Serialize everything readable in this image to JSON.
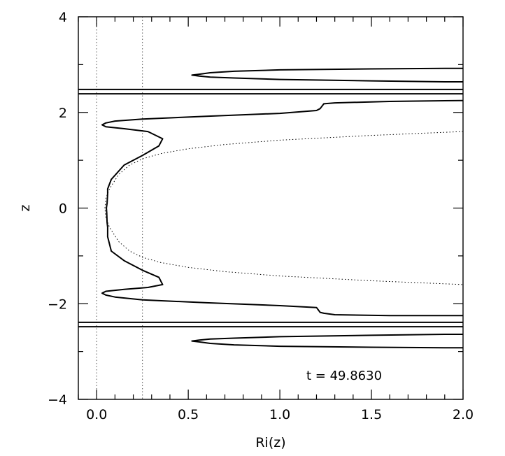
{
  "chart_data": {
    "type": "line",
    "xlabel": "Ri(z)",
    "ylabel": "z",
    "xlim": [
      -0.1,
      2.0
    ],
    "ylim": [
      -4,
      4
    ],
    "xticks": [
      0.0,
      0.5,
      1.0,
      1.5,
      2.0
    ],
    "xtick_labels": [
      "0.0",
      "0.5",
      "1.0",
      "1.5",
      "2.0"
    ],
    "yticks": [
      -4,
      -2,
      0,
      2,
      4
    ],
    "ytick_labels": [
      "−4",
      "−2",
      "0",
      "2",
      "4"
    ],
    "annotation": "t  =  49.8630",
    "reference_vlines": [
      0.0,
      0.25
    ],
    "horizontal_lines": [
      2.48,
      2.39,
      -2.39,
      -2.48
    ],
    "series": [
      {
        "style": "solid",
        "segments": [
          {
            "x": [
              2.0,
              1.9,
              1.5,
              1.0,
              0.75,
              0.62,
              0.56,
              0.52,
              0.56,
              0.62,
              0.75,
              1.0,
              1.5,
              1.9,
              2.0
            ],
            "y": [
              2.92,
              2.92,
              2.91,
              2.89,
              2.86,
              2.83,
              2.8,
              2.78,
              2.76,
              2.74,
              2.72,
              2.69,
              2.66,
              2.64,
              2.64
            ]
          },
          {
            "x": [
              2.0,
              1.6,
              1.3,
              1.24,
              1.22,
              1.2,
              1.0,
              0.6,
              0.25,
              0.1,
              0.05,
              0.03,
              0.05,
              0.15,
              0.28,
              0.36,
              0.34,
              0.25,
              0.15,
              0.08,
              0.06,
              0.06,
              0.057,
              0.053,
              0.055,
              0.057,
              0.06,
              0.06,
              0.08,
              0.15,
              0.25,
              0.34,
              0.36,
              0.28,
              0.15,
              0.05,
              0.03,
              0.05,
              0.1,
              0.25,
              0.6,
              1.0,
              1.2,
              1.22,
              1.24,
              1.3,
              1.6,
              2.0
            ],
            "y": [
              2.25,
              2.23,
              2.2,
              2.18,
              2.08,
              2.04,
              1.98,
              1.92,
              1.86,
              1.82,
              1.78,
              1.74,
              1.7,
              1.66,
              1.6,
              1.45,
              1.3,
              1.1,
              0.9,
              0.6,
              0.4,
              0.3,
              0.1,
              0.0,
              -0.1,
              -0.3,
              -0.4,
              -0.6,
              -0.9,
              -1.1,
              -1.3,
              -1.45,
              -1.6,
              -1.66,
              -1.7,
              -1.74,
              -1.78,
              -1.82,
              -1.86,
              -1.92,
              -1.98,
              -2.04,
              -2.08,
              -2.18,
              -2.2,
              -2.23,
              -2.25,
              -2.25
            ]
          },
          {
            "x": [
              2.0,
              1.9,
              1.5,
              1.0,
              0.75,
              0.62,
              0.56,
              0.52,
              0.56,
              0.62,
              0.75,
              1.0,
              1.5,
              1.9,
              2.0
            ],
            "y": [
              -2.64,
              -2.64,
              -2.66,
              -2.69,
              -2.72,
              -2.74,
              -2.76,
              -2.78,
              -2.8,
              -2.83,
              -2.86,
              -2.89,
              -2.91,
              -2.92,
              -2.92
            ]
          }
        ]
      },
      {
        "style": "dotted",
        "segments": [
          {
            "x": [
              2.0,
              1.5,
              1.0,
              0.7,
              0.5,
              0.35,
              0.25,
              0.18,
              0.12,
              0.07,
              0.05,
              0.045,
              0.05,
              0.07,
              0.12,
              0.18,
              0.25,
              0.35,
              0.5,
              0.7,
              1.0,
              1.5,
              2.0
            ],
            "y": [
              1.6,
              1.52,
              1.42,
              1.33,
              1.24,
              1.14,
              1.03,
              0.9,
              0.7,
              0.4,
              0.2,
              0.0,
              -0.2,
              -0.4,
              -0.7,
              -0.9,
              -1.03,
              -1.14,
              -1.24,
              -1.33,
              -1.42,
              -1.52,
              -1.6
            ]
          }
        ]
      }
    ]
  }
}
